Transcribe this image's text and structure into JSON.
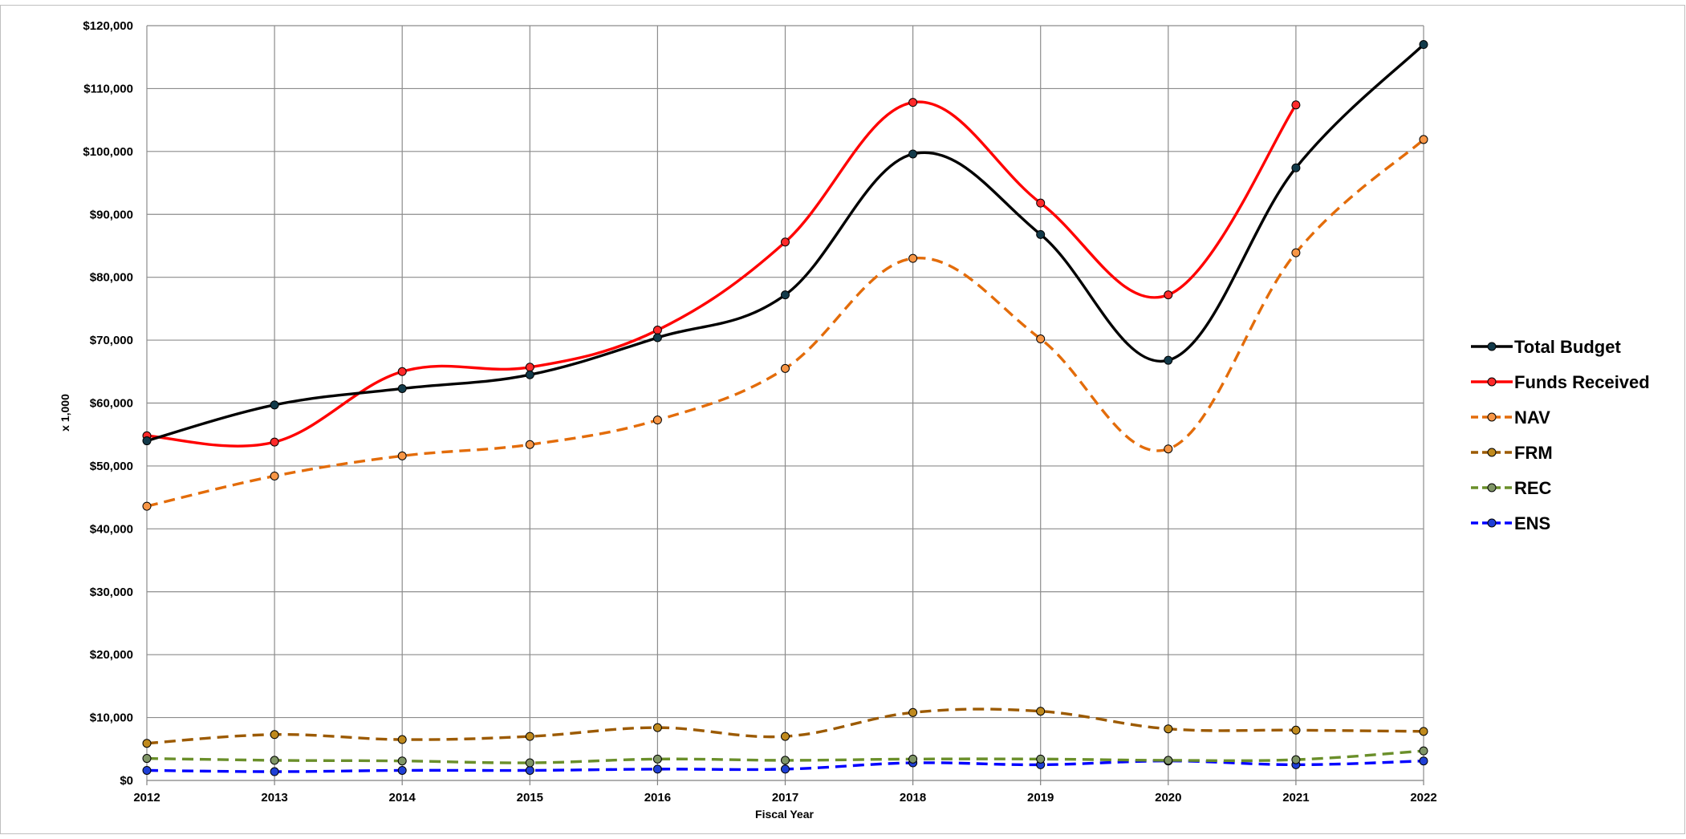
{
  "chart_data": {
    "type": "line",
    "title": "",
    "xlabel": "Fiscal Year",
    "ylabel": "x 1,000",
    "x": [
      "2012",
      "2013",
      "2014",
      "2015",
      "2016",
      "2017",
      "2018",
      "2019",
      "2020",
      "2021",
      "2022"
    ],
    "ylim": [
      0,
      120000
    ],
    "y_ticks": [
      {
        "value": 0,
        "label": "$0"
      },
      {
        "value": 10000,
        "label": "$10,000"
      },
      {
        "value": 20000,
        "label": "$20,000"
      },
      {
        "value": 30000,
        "label": "$30,000"
      },
      {
        "value": 40000,
        "label": "$40,000"
      },
      {
        "value": 50000,
        "label": "$50,000"
      },
      {
        "value": 60000,
        "label": "$60,000"
      },
      {
        "value": 70000,
        "label": "$70,000"
      },
      {
        "value": 80000,
        "label": "$80,000"
      },
      {
        "value": 90000,
        "label": "$90,000"
      },
      {
        "value": 100000,
        "label": "$100,000"
      },
      {
        "value": 110000,
        "label": "$110,000"
      },
      {
        "value": 120000,
        "label": "$120,000"
      }
    ],
    "grid": true,
    "legend_position": "right",
    "smooth": true,
    "series": [
      {
        "name": "Total Budget",
        "color": "#000000",
        "marker_fill": "#123a4a",
        "dashed": false,
        "values": [
          54000,
          59700,
          62300,
          64500,
          70400,
          77200,
          99600,
          86800,
          66800,
          97400,
          117000
        ]
      },
      {
        "name": "Funds Received",
        "color": "#ff0000",
        "marker_fill": "#ff2a2a",
        "dashed": false,
        "values": [
          54800,
          53800,
          65000,
          65700,
          71600,
          85600,
          107800,
          91800,
          77200,
          107400,
          null
        ]
      },
      {
        "name": "NAV",
        "color": "#e36c0a",
        "marker_fill": "#f79646",
        "dashed": true,
        "values": [
          43600,
          48400,
          51600,
          53400,
          57300,
          65500,
          83000,
          70200,
          52700,
          83900,
          101900
        ]
      },
      {
        "name": "FRM",
        "color": "#9c5a00",
        "marker_fill": "#c08a1e",
        "dashed": true,
        "values": [
          5900,
          7300,
          6500,
          7000,
          8400,
          7000,
          10800,
          11000,
          8200,
          8000,
          7800
        ]
      },
      {
        "name": "REC",
        "color": "#6a8f2a",
        "marker_fill": "#7f9566",
        "dashed": true,
        "values": [
          3500,
          3200,
          3100,
          2800,
          3400,
          3200,
          3400,
          3400,
          3200,
          3300,
          4700
        ]
      },
      {
        "name": "ENS",
        "color": "#0000ff",
        "marker_fill": "#1f3fd6",
        "dashed": true,
        "values": [
          1600,
          1400,
          1600,
          1600,
          1800,
          1800,
          2800,
          2500,
          3100,
          2500,
          3100
        ]
      }
    ]
  }
}
